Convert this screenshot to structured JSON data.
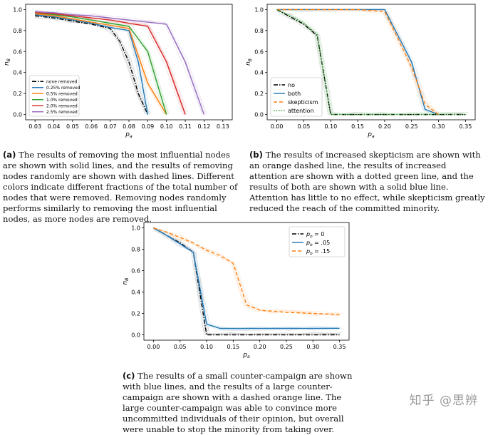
{
  "captions": {
    "a": {
      "label": "(a)",
      "text": " The results of removing the most influential nodes are shown with solid lines, and the results of removing nodes randomly are shown with dashed lines. Different colors indicate different fractions of the total number of nodes that were removed. Removing nodes randomly performs similarly to removing the most influential nodes, as more nodes are removed."
    },
    "b": {
      "label": "(b)",
      "text": " The results of increased skepticism are shown with an orange dashed line, the results of increased attention are shown with a dotted green line, and the results of both are shown with a solid blue line. Attention has little to no effect, while skepticism greatly reduced the reach of the committed minority."
    },
    "c": {
      "label": "(c)",
      "text": " The results of a small counter-campaign are shown with blue lines, and the results of a large counter-campaign are shown with a dashed orange line. The large counter-campaign was able to convince more uncommitted individuals of their opinion, but overall were unable to stop the minority from taking over."
    }
  },
  "watermark": "知乎 @思辨",
  "chart_data": [
    {
      "id": "a",
      "type": "line",
      "xlabel": "p_a",
      "ylabel": "n_B",
      "xlim": [
        0.025,
        0.135
      ],
      "ylim": [
        -0.05,
        1.05
      ],
      "xticks": [
        "0.03",
        "0.04",
        "0.05",
        "0.06",
        "0.07",
        "0.08",
        "0.09",
        "0.10",
        "0.11",
        "0.12",
        "0.13"
      ],
      "yticks": [
        "0.0",
        "0.2",
        "0.4",
        "0.6",
        "0.8",
        "1.0"
      ],
      "legend": "lower-left",
      "series": [
        {
          "name": "none removed",
          "color": "#000000",
          "dash": "dashdot",
          "x": [
            0.03,
            0.04,
            0.05,
            0.06,
            0.07,
            0.075,
            0.08,
            0.085,
            0.09
          ],
          "y": [
            0.94,
            0.92,
            0.89,
            0.86,
            0.82,
            0.7,
            0.5,
            0.2,
            0.0
          ]
        },
        {
          "name": "0.25% removed",
          "color": "#1f77b4",
          "dash": "solid",
          "x": [
            0.03,
            0.04,
            0.05,
            0.06,
            0.07,
            0.08,
            0.085,
            0.09
          ],
          "y": [
            0.95,
            0.93,
            0.9,
            0.87,
            0.83,
            0.8,
            0.5,
            0.0
          ]
        },
        {
          "name": "0.5% removed",
          "color": "#ff7f0e",
          "dash": "solid",
          "x": [
            0.03,
            0.04,
            0.05,
            0.06,
            0.07,
            0.08,
            0.09,
            0.1
          ],
          "y": [
            0.96,
            0.94,
            0.91,
            0.88,
            0.85,
            0.82,
            0.3,
            0.0
          ]
        },
        {
          "name": "1.0% removed",
          "color": "#2ca02c",
          "dash": "solid",
          "x": [
            0.03,
            0.04,
            0.05,
            0.06,
            0.07,
            0.08,
            0.09,
            0.1
          ],
          "y": [
            0.97,
            0.95,
            0.93,
            0.9,
            0.87,
            0.84,
            0.6,
            0.0
          ]
        },
        {
          "name": "2.0% removed",
          "color": "#d62728",
          "dash": "solid",
          "x": [
            0.03,
            0.04,
            0.05,
            0.06,
            0.07,
            0.08,
            0.09,
            0.1,
            0.11
          ],
          "y": [
            0.97,
            0.96,
            0.94,
            0.92,
            0.9,
            0.87,
            0.84,
            0.5,
            0.0
          ]
        },
        {
          "name": "2.5% removed",
          "color": "#9467bd",
          "dash": "solid",
          "x": [
            0.03,
            0.04,
            0.05,
            0.06,
            0.07,
            0.08,
            0.09,
            0.1,
            0.11,
            0.12
          ],
          "y": [
            0.98,
            0.97,
            0.95,
            0.94,
            0.92,
            0.9,
            0.88,
            0.86,
            0.5,
            0.0
          ]
        }
      ]
    },
    {
      "id": "b",
      "type": "line",
      "xlabel": "p_a",
      "ylabel": "n_B",
      "xlim": [
        -0.018,
        0.368
      ],
      "ylim": [
        -0.05,
        1.05
      ],
      "xticks": [
        "0.00",
        "0.05",
        "0.10",
        "0.15",
        "0.20",
        "0.25",
        "0.30",
        "0.35"
      ],
      "yticks": [
        "0.0",
        "0.2",
        "0.4",
        "0.6",
        "0.8",
        "1.0"
      ],
      "legend": "lower-left",
      "series": [
        {
          "name": "no",
          "color": "#000000",
          "dash": "dashdot",
          "x": [
            0,
            0.025,
            0.05,
            0.075,
            0.1,
            0.15,
            0.2,
            0.25,
            0.3,
            0.35
          ],
          "y": [
            1.0,
            0.93,
            0.86,
            0.75,
            0.0,
            0.0,
            0.0,
            0.0,
            0.0,
            0.0
          ]
        },
        {
          "name": "both",
          "color": "#1f77b4",
          "dash": "solid",
          "x": [
            0,
            0.05,
            0.1,
            0.15,
            0.2,
            0.225,
            0.25,
            0.275,
            0.3
          ],
          "y": [
            1.0,
            1.0,
            1.0,
            1.0,
            1.0,
            0.75,
            0.5,
            0.05,
            0.0
          ]
        },
        {
          "name": "skepticism",
          "color": "#ff7f0e",
          "dash": "dashed",
          "x": [
            0,
            0.05,
            0.1,
            0.15,
            0.2,
            0.225,
            0.25,
            0.275,
            0.3
          ],
          "y": [
            1.0,
            1.0,
            1.0,
            1.0,
            0.98,
            0.72,
            0.45,
            0.1,
            0.0
          ]
        },
        {
          "name": "attention",
          "color": "#2ca02c",
          "dash": "dotted",
          "x": [
            0,
            0.025,
            0.05,
            0.075,
            0.1,
            0.15,
            0.2,
            0.25,
            0.3,
            0.35
          ],
          "y": [
            1.0,
            0.94,
            0.87,
            0.76,
            0.0,
            0.0,
            0.0,
            0.0,
            0.0,
            0.0
          ]
        }
      ]
    },
    {
      "id": "c",
      "type": "line",
      "xlabel": "p_a",
      "ylabel": "n_B",
      "xlim": [
        -0.018,
        0.368
      ],
      "ylim": [
        -0.05,
        1.05
      ],
      "xticks": [
        "0.00",
        "0.05",
        "0.10",
        "0.15",
        "0.20",
        "0.25",
        "0.30",
        "0.35"
      ],
      "yticks": [
        "0.0",
        "0.2",
        "0.4",
        "0.6",
        "0.8",
        "1.0"
      ],
      "legend": "top-right",
      "legend_labels": [
        "p_b = 0",
        "p_b = .05",
        "p_b = .15"
      ],
      "series": [
        {
          "name": "p_b = 0",
          "color": "#000000",
          "dash": "dashdot",
          "x": [
            0,
            0.025,
            0.05,
            0.075,
            0.1,
            0.15,
            0.2,
            0.25,
            0.3,
            0.35
          ],
          "y": [
            1.0,
            0.93,
            0.86,
            0.77,
            0.0,
            0.0,
            0.0,
            0.0,
            0.0,
            0.0
          ]
        },
        {
          "name": "p_b = .05",
          "color": "#1f77b4",
          "dash": "solid",
          "x": [
            0,
            0.025,
            0.05,
            0.075,
            0.1,
            0.125,
            0.15,
            0.2,
            0.25,
            0.3,
            0.35
          ],
          "y": [
            1.0,
            0.93,
            0.85,
            0.77,
            0.1,
            0.06,
            0.06,
            0.06,
            0.06,
            0.06,
            0.06
          ]
        },
        {
          "name": "p_b = .15",
          "color": "#ff7f0e",
          "dash": "dashed",
          "x": [
            0,
            0.025,
            0.05,
            0.075,
            0.1,
            0.125,
            0.15,
            0.175,
            0.2,
            0.225,
            0.25,
            0.3,
            0.35
          ],
          "y": [
            1.0,
            0.96,
            0.91,
            0.86,
            0.79,
            0.74,
            0.67,
            0.28,
            0.23,
            0.22,
            0.21,
            0.2,
            0.19
          ]
        }
      ]
    }
  ]
}
